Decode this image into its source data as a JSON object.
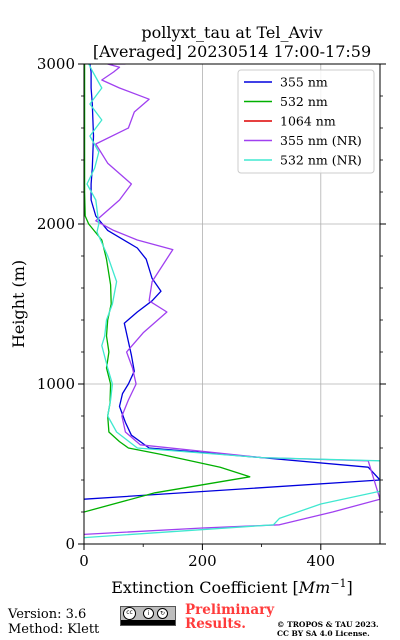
{
  "title": {
    "line1": "pollyxt_tau at Tel_Aviv",
    "line2": "[Averaged] 20230514 17:00-17:59"
  },
  "chart_data": {
    "type": "line",
    "title": "pollyxt_tau at Tel_Aviv [Averaged] 20230514 17:00-17:59",
    "xlabel": "Extinction Coefficient [Mm^-1]",
    "ylabel": "Height (m)",
    "xlim": [
      0,
      500
    ],
    "ylim": [
      0,
      3000
    ],
    "xticks": [
      "0",
      "200",
      "400"
    ],
    "yticks": [
      "0",
      "1000",
      "2000",
      "3000"
    ],
    "grid": true,
    "legend_position": "top-right",
    "series": [
      {
        "name": "355 nm",
        "color": "#0000dd",
        "x": [
          0,
          500,
          480,
          300,
          110,
          80,
          70,
          60,
          65,
          75,
          85,
          80,
          68,
          90,
          115,
          130,
          115,
          105,
          90,
          40,
          20,
          12,
          12,
          14,
          15,
          16,
          15,
          14,
          12,
          12,
          10
        ],
        "y": [
          280,
          400,
          480,
          540,
          600,
          680,
          760,
          860,
          940,
          1000,
          1080,
          1180,
          1380,
          1450,
          1520,
          1580,
          1660,
          1780,
          1850,
          1960,
          2050,
          2150,
          2250,
          2350,
          2450,
          2550,
          2650,
          2750,
          2850,
          2950,
          3000
        ]
      },
      {
        "name": "532 nm",
        "color": "#00b000",
        "x": [
          0,
          120,
          280,
          230,
          130,
          75,
          60,
          42,
          40,
          44,
          45,
          38,
          42,
          38,
          40,
          46,
          45,
          38,
          30,
          8,
          2,
          1,
          1,
          1,
          1
        ],
        "y": [
          200,
          320,
          420,
          480,
          560,
          600,
          640,
          700,
          800,
          880,
          1000,
          1100,
          1200,
          1300,
          1400,
          1500,
          1620,
          1780,
          1900,
          2000,
          2050,
          2200,
          2400,
          2700,
          3000
        ]
      },
      {
        "name": "1064 nm",
        "color": "#dd0000",
        "x": [],
        "y": []
      },
      {
        "name": "355 nm (NR)",
        "color": "#a040f0",
        "x": [
          0,
          200,
          330,
          420,
          500,
          480,
          300,
          95,
          70,
          64,
          75,
          88,
          82,
          72,
          100,
          140,
          110,
          115,
          150,
          90,
          50,
          20,
          60,
          80,
          40,
          20,
          75,
          85,
          110,
          60,
          30,
          50,
          60,
          40,
          70
        ],
        "y": [
          60,
          100,
          120,
          200,
          280,
          520,
          540,
          620,
          700,
          800,
          900,
          1000,
          1100,
          1200,
          1320,
          1450,
          1520,
          1640,
          1840,
          1900,
          1960,
          2020,
          2150,
          2250,
          2380,
          2500,
          2600,
          2700,
          2780,
          2850,
          2900,
          2950,
          2980,
          3000,
          3000
        ]
      },
      {
        "name": "532 nm (NR)",
        "color": "#40e8d0",
        "x": [
          0,
          320,
          330,
          400,
          500,
          500,
          300,
          90,
          55,
          40,
          45,
          48,
          40,
          30,
          35,
          38,
          48,
          55,
          40,
          22,
          25,
          20,
          5,
          18,
          25,
          10,
          30,
          10,
          30,
          15,
          8
        ],
        "y": [
          40,
          120,
          160,
          250,
          330,
          520,
          540,
          600,
          700,
          800,
          900,
          1000,
          1100,
          1240,
          1300,
          1400,
          1500,
          1640,
          1800,
          1950,
          2000,
          2150,
          2250,
          2350,
          2450,
          2550,
          2650,
          2750,
          2850,
          2950,
          3000
        ]
      }
    ]
  },
  "footer": {
    "version": "Version: 3.6",
    "method": "Method: Klett",
    "preliminary_line1": "Preliminary",
    "preliminary_line2": "Results.",
    "license_line1": "© TROPOS & TAU 2023.",
    "license_line2": "CC BY SA 4.0 License."
  }
}
